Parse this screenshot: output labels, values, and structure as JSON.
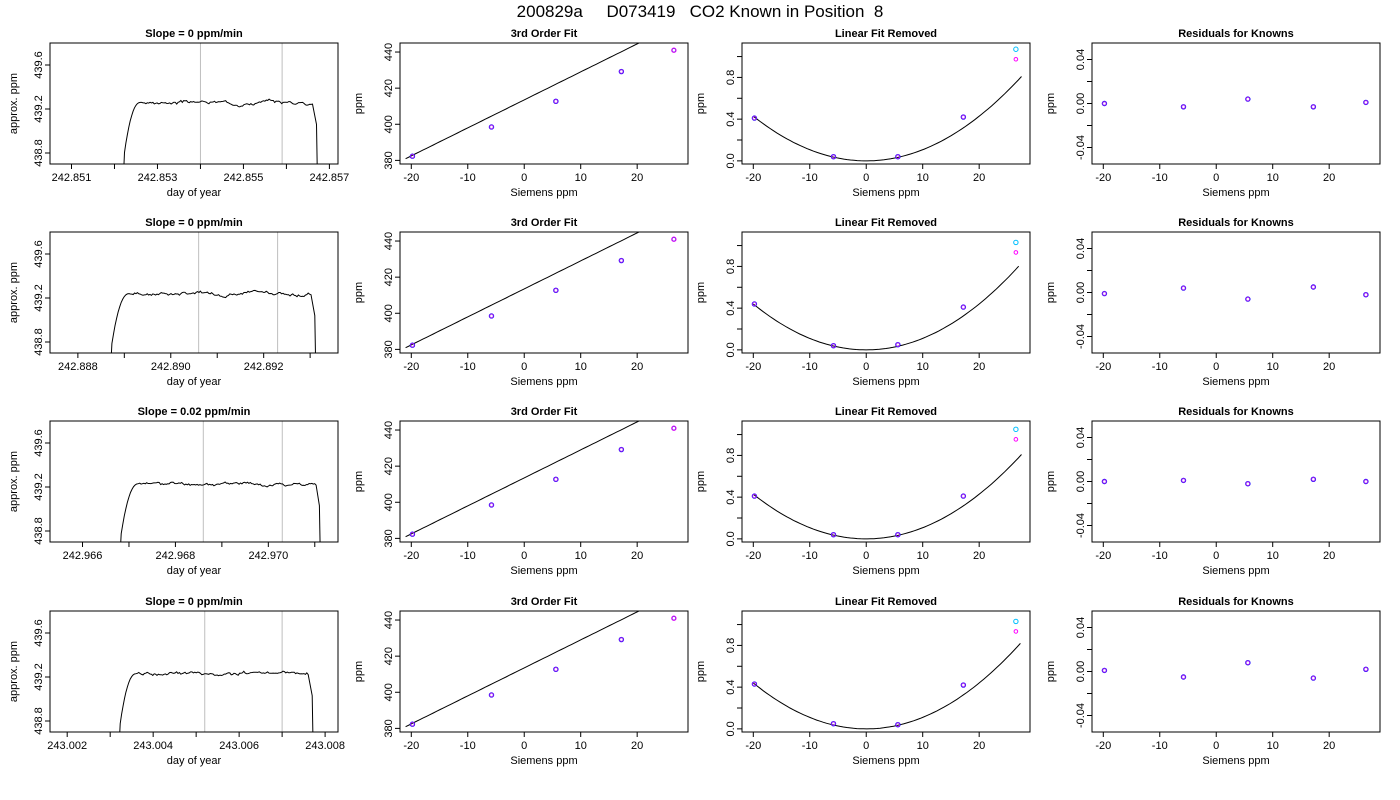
{
  "figure": {
    "title": "200829a     D073419   CO2 Known in Position  8"
  },
  "colors": {
    "axis": "#000000",
    "trace": "#000000",
    "marker_line": "#bebebe",
    "point_blue": "#0000ff",
    "point_purple": "#a020f0",
    "point_cyan": "#00bfff",
    "point_magenta": "#ff00ff"
  },
  "chart_data": [
    {
      "type": "line",
      "title": "Slope =  0  ppm/min",
      "xlabel": "day of year",
      "ylabel": "approx. ppm",
      "xlim": [
        242.8505,
        242.8572
      ],
      "ylim": [
        438.7,
        439.8
      ],
      "xticks": [
        242.851,
        242.853,
        242.855,
        242.857
      ],
      "xtick_labels": [
        "242.851",
        "242.853",
        "242.855",
        "242.857"
      ],
      "xminor": [
        242.852,
        242.854,
        242.856
      ],
      "yticks": [
        438.8,
        439.2,
        439.6
      ],
      "ytick_labels": [
        "438.8",
        "439.2",
        "439.6"
      ],
      "markers": [
        242.854,
        242.8559
      ],
      "trace": {
        "start": 242.8522,
        "rise": 242.8526,
        "end": 242.8566,
        "end_drop": 242.8567,
        "level": 439.26,
        "seed": 3
      }
    },
    {
      "type": "scatter",
      "title": "3rd Order Fit",
      "xlabel": "Siemens ppm",
      "ylabel": "ppm",
      "xlim": [
        -22,
        29
      ],
      "ylim": [
        378,
        445
      ],
      "xticks": [
        -20,
        -10,
        0,
        10,
        20
      ],
      "xtick_labels": [
        "-20",
        "-10",
        "0",
        "10",
        "20"
      ],
      "yticks": [
        380,
        400,
        420,
        440
      ],
      "ytick_labels": [
        "380",
        "400",
        "420",
        "440"
      ],
      "curve": {
        "kind": "linear",
        "a": 413.5,
        "b": 1.55,
        "x0": -21,
        "x1": 28
      },
      "points": [
        {
          "x": -19.8,
          "y": 382.3
        },
        {
          "x": -5.8,
          "y": 398.5
        },
        {
          "x": 5.6,
          "y": 412.7
        },
        {
          "x": 17.2,
          "y": 429.2
        },
        {
          "x": 26.5,
          "y": 441.0
        }
      ]
    },
    {
      "type": "scatter",
      "title": "Linear Fit Removed",
      "xlabel": "Siemens ppm",
      "ylabel": "ppm",
      "xlim": [
        -22,
        29
      ],
      "ylim": [
        -0.03,
        1.13
      ],
      "xticks": [
        -20,
        -10,
        0,
        10,
        20
      ],
      "xtick_labels": [
        "-20",
        "-10",
        "0",
        "10",
        "20"
      ],
      "yticks": [
        0.0,
        0.4,
        0.8
      ],
      "ytick_labels": [
        "0.0",
        "0.4",
        "0.8"
      ],
      "yminor": [
        0.2,
        0.6,
        1.0
      ],
      "curve": {
        "kind": "quadratic",
        "k": 0.00107,
        "x0": -20,
        "x1": 27.5
      },
      "points": [
        {
          "x": -19.8,
          "y": 0.41
        },
        {
          "x": -5.8,
          "y": 0.04
        },
        {
          "x": 5.6,
          "y": 0.04
        },
        {
          "x": 17.2,
          "y": 0.42
        },
        {
          "x": 26.5,
          "y": 1.07
        }
      ]
    },
    {
      "type": "scatter",
      "title": "Residuals for Knowns",
      "xlabel": "Siemens ppm",
      "ylabel": "ppm",
      "xlim": [
        -22,
        29
      ],
      "ylim": [
        -0.055,
        0.055
      ],
      "xticks": [
        -20,
        -10,
        0,
        10,
        20
      ],
      "xtick_labels": [
        "-20",
        "-10",
        "0",
        "10",
        "20"
      ],
      "yticks": [
        -0.04,
        0.0,
        0.04
      ],
      "ytick_labels": [
        "-0.04",
        "0.00",
        "0.04"
      ],
      "yminor": [
        -0.02,
        0.02
      ],
      "points": [
        {
          "x": -19.8,
          "y": 0.0
        },
        {
          "x": -5.8,
          "y": -0.003
        },
        {
          "x": 5.6,
          "y": 0.004
        },
        {
          "x": 17.2,
          "y": -0.003
        },
        {
          "x": 26.5,
          "y": 0.001
        }
      ]
    },
    {
      "type": "line",
      "title": "Slope =  0  ppm/min",
      "xlabel": "day of year",
      "ylabel": "approx. ppm",
      "xlim": [
        242.8874,
        242.8936
      ],
      "ylim": [
        438.7,
        439.8
      ],
      "xticks": [
        242.888,
        242.89,
        242.892
      ],
      "xtick_labels": [
        "242.888",
        "242.890",
        "242.892"
      ],
      "xminor": [
        242.889,
        242.891,
        242.893
      ],
      "yticks": [
        438.8,
        439.2,
        439.6
      ],
      "ytick_labels": [
        "438.8",
        "439.2",
        "439.6"
      ],
      "markers": [
        242.8906,
        242.8923
      ],
      "trace": {
        "start": 242.8887,
        "rise": 242.8891,
        "end": 242.893,
        "end_drop": 242.8931,
        "level": 439.24,
        "seed": 7
      }
    },
    {
      "type": "scatter",
      "title": "3rd Order Fit",
      "xlabel": "Siemens ppm",
      "ylabel": "ppm",
      "xlim": [
        -22,
        29
      ],
      "ylim": [
        378,
        445
      ],
      "xticks": [
        -20,
        -10,
        0,
        10,
        20
      ],
      "xtick_labels": [
        "-20",
        "-10",
        "0",
        "10",
        "20"
      ],
      "yticks": [
        380,
        400,
        420,
        440
      ],
      "ytick_labels": [
        "380",
        "400",
        "420",
        "440"
      ],
      "curve": {
        "kind": "linear",
        "a": 413.5,
        "b": 1.55,
        "x0": -21,
        "x1": 28
      },
      "points": [
        {
          "x": -19.8,
          "y": 382.3
        },
        {
          "x": -5.8,
          "y": 398.5
        },
        {
          "x": 5.6,
          "y": 412.7
        },
        {
          "x": 17.2,
          "y": 429.2
        },
        {
          "x": 26.5,
          "y": 441.0
        }
      ]
    },
    {
      "type": "scatter",
      "title": "Linear Fit Removed",
      "xlabel": "Siemens ppm",
      "ylabel": "ppm",
      "xlim": [
        -22,
        29
      ],
      "ylim": [
        -0.03,
        1.13
      ],
      "xticks": [
        -20,
        -10,
        0,
        10,
        20
      ],
      "xtick_labels": [
        "-20",
        "-10",
        "0",
        "10",
        "20"
      ],
      "yticks": [
        0.0,
        0.4,
        0.8
      ],
      "ytick_labels": [
        "0.0",
        "0.4",
        "0.8"
      ],
      "yminor": [
        0.2,
        0.6,
        1.0
      ],
      "curve": {
        "kind": "quadratic",
        "k": 0.0011,
        "x0": -20,
        "x1": 27
      },
      "points": [
        {
          "x": -19.8,
          "y": 0.44
        },
        {
          "x": -5.8,
          "y": 0.04
        },
        {
          "x": 5.6,
          "y": 0.05
        },
        {
          "x": 17.2,
          "y": 0.41
        },
        {
          "x": 26.5,
          "y": 1.03
        }
      ]
    },
    {
      "type": "scatter",
      "title": "Residuals for Knowns",
      "xlabel": "Siemens ppm",
      "ylabel": "ppm",
      "xlim": [
        -22,
        29
      ],
      "ylim": [
        -0.055,
        0.055
      ],
      "xticks": [
        -20,
        -10,
        0,
        10,
        20
      ],
      "xtick_labels": [
        "-20",
        "-10",
        "0",
        "10",
        "20"
      ],
      "yticks": [
        -0.04,
        0.0,
        0.04
      ],
      "ytick_labels": [
        "-0.04",
        "0.00",
        "0.04"
      ],
      "yminor": [
        -0.02,
        0.02
      ],
      "points": [
        {
          "x": -19.8,
          "y": -0.001
        },
        {
          "x": -5.8,
          "y": 0.004
        },
        {
          "x": 5.6,
          "y": -0.006
        },
        {
          "x": 17.2,
          "y": 0.005
        },
        {
          "x": 26.5,
          "y": -0.002
        }
      ]
    },
    {
      "type": "line",
      "title": "Slope =  0.02  ppm/min",
      "xlabel": "day of year",
      "ylabel": "approx. ppm",
      "xlim": [
        242.9653,
        242.9715
      ],
      "ylim": [
        438.7,
        439.8
      ],
      "xticks": [
        242.966,
        242.968,
        242.97
      ],
      "xtick_labels": [
        "242.966",
        "242.968",
        "242.970"
      ],
      "xminor": [
        242.967,
        242.969,
        242.971
      ],
      "yticks": [
        438.8,
        439.2,
        439.6
      ],
      "ytick_labels": [
        "438.8",
        "439.2",
        "439.6"
      ],
      "markers": [
        242.9686,
        242.9703
      ],
      "trace": {
        "start": 242.9668,
        "rise": 242.9672,
        "end": 242.971,
        "end_drop": 242.9711,
        "level": 439.23,
        "seed": 11
      }
    },
    {
      "type": "scatter",
      "title": "3rd Order Fit",
      "xlabel": "Siemens ppm",
      "ylabel": "ppm",
      "xlim": [
        -22,
        29
      ],
      "ylim": [
        378,
        445
      ],
      "xticks": [
        -20,
        -10,
        0,
        10,
        20
      ],
      "xtick_labels": [
        "-20",
        "-10",
        "0",
        "10",
        "20"
      ],
      "yticks": [
        380,
        400,
        420,
        440
      ],
      "ytick_labels": [
        "380",
        "400",
        "420",
        "440"
      ],
      "curve": {
        "kind": "linear",
        "a": 413.5,
        "b": 1.55,
        "x0": -21,
        "x1": 28
      },
      "points": [
        {
          "x": -19.8,
          "y": 382.3
        },
        {
          "x": -5.8,
          "y": 398.5
        },
        {
          "x": 5.6,
          "y": 412.7
        },
        {
          "x": 17.2,
          "y": 429.2
        },
        {
          "x": 26.5,
          "y": 441.0
        }
      ]
    },
    {
      "type": "scatter",
      "title": "Linear Fit Removed",
      "xlabel": "Siemens ppm",
      "ylabel": "ppm",
      "xlim": [
        -22,
        29
      ],
      "ylim": [
        -0.03,
        1.13
      ],
      "xticks": [
        -20,
        -10,
        0,
        10,
        20
      ],
      "xtick_labels": [
        "-20",
        "-10",
        "0",
        "10",
        "20"
      ],
      "yticks": [
        0.0,
        0.4,
        0.8
      ],
      "ytick_labels": [
        "0.0",
        "0.4",
        "0.8"
      ],
      "yminor": [
        0.2,
        0.6,
        1.0
      ],
      "curve": {
        "kind": "quadratic",
        "k": 0.00107,
        "x0": -20,
        "x1": 27.5
      },
      "points": [
        {
          "x": -19.8,
          "y": 0.41
        },
        {
          "x": -5.8,
          "y": 0.04
        },
        {
          "x": 5.6,
          "y": 0.04
        },
        {
          "x": 17.2,
          "y": 0.41
        },
        {
          "x": 26.5,
          "y": 1.05
        }
      ]
    },
    {
      "type": "scatter",
      "title": "Residuals for Knowns",
      "xlabel": "Siemens ppm",
      "ylabel": "ppm",
      "xlim": [
        -22,
        29
      ],
      "ylim": [
        -0.055,
        0.055
      ],
      "xticks": [
        -20,
        -10,
        0,
        10,
        20
      ],
      "xtick_labels": [
        "-20",
        "-10",
        "0",
        "10",
        "20"
      ],
      "yticks": [
        -0.04,
        0.0,
        0.04
      ],
      "ytick_labels": [
        "-0.04",
        "0.00",
        "0.04"
      ],
      "yminor": [
        -0.02,
        0.02
      ],
      "points": [
        {
          "x": -19.8,
          "y": 0.0
        },
        {
          "x": -5.8,
          "y": 0.001
        },
        {
          "x": 5.6,
          "y": -0.002
        },
        {
          "x": 17.2,
          "y": 0.002
        },
        {
          "x": 26.5,
          "y": 0.0
        }
      ]
    },
    {
      "type": "line",
      "title": "Slope =  0  ppm/min",
      "xlabel": "day of year",
      "ylabel": "approx. ppm",
      "xlim": [
        243.0016,
        243.0083
      ],
      "ylim": [
        438.7,
        439.8
      ],
      "xticks": [
        243.002,
        243.004,
        243.006,
        243.008
      ],
      "xtick_labels": [
        "243.002",
        "243.004",
        "243.006",
        "243.008"
      ],
      "xminor": [
        243.003,
        243.005,
        243.007
      ],
      "yticks": [
        438.8,
        439.2,
        439.6
      ],
      "ytick_labels": [
        "438.8",
        "439.2",
        "439.6"
      ],
      "markers": [
        243.0052,
        243.007
      ],
      "trace": {
        "start": 243.0032,
        "rise": 243.0036,
        "end": 243.0076,
        "end_drop": 243.0077,
        "level": 439.23,
        "seed": 19
      }
    },
    {
      "type": "scatter",
      "title": "3rd Order Fit",
      "xlabel": "Siemens ppm",
      "ylabel": "ppm",
      "xlim": [
        -22,
        29
      ],
      "ylim": [
        378,
        445
      ],
      "xticks": [
        -20,
        -10,
        0,
        10,
        20
      ],
      "xtick_labels": [
        "-20",
        "-10",
        "0",
        "10",
        "20"
      ],
      "yticks": [
        380,
        400,
        420,
        440
      ],
      "ytick_labels": [
        "380",
        "400",
        "420",
        "440"
      ],
      "curve": {
        "kind": "linear",
        "a": 413.5,
        "b": 1.55,
        "x0": -21,
        "x1": 28
      },
      "points": [
        {
          "x": -19.8,
          "y": 382.3
        },
        {
          "x": -5.8,
          "y": 398.5
        },
        {
          "x": 5.6,
          "y": 412.7
        },
        {
          "x": 17.2,
          "y": 429.2
        },
        {
          "x": 26.5,
          "y": 441.0
        }
      ]
    },
    {
      "type": "scatter",
      "title": "Linear Fit Removed",
      "xlabel": "Siemens ppm",
      "ylabel": "ppm",
      "xlim": [
        -22,
        29
      ],
      "ylim": [
        -0.03,
        1.13
      ],
      "xticks": [
        -20,
        -10,
        0,
        10,
        20
      ],
      "xtick_labels": [
        "-20",
        "-10",
        "0",
        "10",
        "20"
      ],
      "yticks": [
        0.0,
        0.4,
        0.8
      ],
      "ytick_labels": [
        "0.0",
        "0.4",
        "0.8"
      ],
      "yminor": [
        0.2,
        0.6,
        1.0
      ],
      "curve": {
        "kind": "quadratic",
        "k": 0.0011,
        "x0": -20,
        "x1": 27.3
      },
      "points": [
        {
          "x": -19.8,
          "y": 0.43
        },
        {
          "x": -5.8,
          "y": 0.05
        },
        {
          "x": 5.6,
          "y": 0.04
        },
        {
          "x": 17.2,
          "y": 0.42
        },
        {
          "x": 26.5,
          "y": 1.03
        }
      ]
    },
    {
      "type": "scatter",
      "title": "Residuals for Knowns",
      "xlabel": "Siemens ppm",
      "ylabel": "ppm",
      "xlim": [
        -22,
        29
      ],
      "ylim": [
        -0.055,
        0.055
      ],
      "xticks": [
        -20,
        -10,
        0,
        10,
        20
      ],
      "xtick_labels": [
        "-20",
        "-10",
        "0",
        "10",
        "20"
      ],
      "yticks": [
        -0.04,
        0.0,
        0.04
      ],
      "ytick_labels": [
        "-0.04",
        "0.00",
        "0.04"
      ],
      "yminor": [
        -0.02,
        0.02
      ],
      "points": [
        {
          "x": -19.8,
          "y": 0.001
        },
        {
          "x": -5.8,
          "y": -0.005
        },
        {
          "x": 5.6,
          "y": 0.008
        },
        {
          "x": 17.2,
          "y": -0.006
        },
        {
          "x": 26.5,
          "y": 0.002
        }
      ]
    }
  ]
}
